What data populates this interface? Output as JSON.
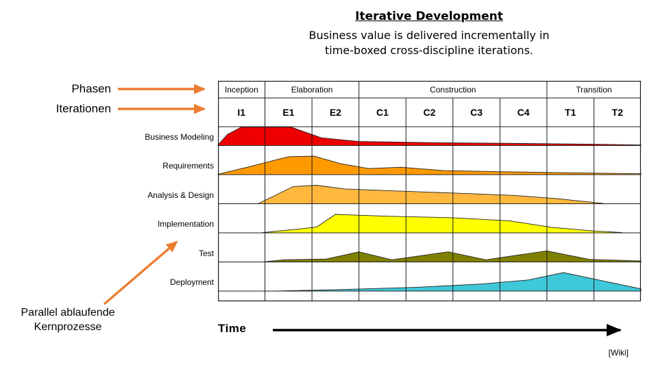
{
  "title": "Iterative Development",
  "subtitle": [
    "Business value is delivered incrementally in",
    "time-boxed cross-discipline iterations."
  ],
  "left_annotations": {
    "phasen": "Phasen",
    "iterationen": "Iterationen",
    "parallel_line1": "Parallel ablaufende",
    "parallel_line2": "Kernprozesse"
  },
  "time_label": "Time",
  "credit": "[Wiki]",
  "colors": {
    "annotation_arrow": "#ed7d31",
    "time_arrow": "#000000",
    "grid_line": "#1a1a1a",
    "hump_outline": "#222222"
  },
  "chart_data": {
    "type": "area",
    "title": "Iterative Development",
    "xlabel": "Time",
    "x_unit": "iteration columns, range 0-9",
    "y_unit": "relative effort per discipline, 0-1",
    "phases": [
      {
        "label": "Inception",
        "iterations": [
          "I1"
        ]
      },
      {
        "label": "Elaboration",
        "iterations": [
          "E1",
          "E2"
        ]
      },
      {
        "label": "Construction",
        "iterations": [
          "C1",
          "C2",
          "C3",
          "C4"
        ]
      },
      {
        "label": "Transition",
        "iterations": [
          "T1",
          "T2"
        ]
      }
    ],
    "iterations": [
      "I1",
      "E1",
      "E2",
      "C1",
      "C2",
      "C3",
      "C4",
      "T1",
      "T2"
    ],
    "disciplines": [
      {
        "label": "Business Modeling",
        "color": "#ee0000",
        "effort": [
          [
            0,
            0.03
          ],
          [
            0.2,
            0.6
          ],
          [
            0.5,
            1
          ],
          [
            1.55,
            1
          ],
          [
            2.2,
            0.42
          ],
          [
            3,
            0.22
          ],
          [
            4.5,
            0.16
          ],
          [
            6.5,
            0.11
          ],
          [
            8,
            0.07
          ],
          [
            9,
            0.03
          ]
        ]
      },
      {
        "label": "Requirements",
        "color": "#ff9900",
        "effort": [
          [
            0,
            0.02
          ],
          [
            0.7,
            0.45
          ],
          [
            1.5,
            0.97
          ],
          [
            2.05,
            1
          ],
          [
            2.6,
            0.6
          ],
          [
            3.2,
            0.33
          ],
          [
            3.9,
            0.4
          ],
          [
            4.8,
            0.22
          ],
          [
            6,
            0.16
          ],
          [
            7.5,
            0.1
          ],
          [
            9,
            0.05
          ]
        ]
      },
      {
        "label": "Analysis & Design",
        "color": "#ffb83d",
        "effort": [
          [
            0.85,
            0
          ],
          [
            1.6,
            0.93
          ],
          [
            2.1,
            1
          ],
          [
            2.7,
            0.8
          ],
          [
            3.5,
            0.72
          ],
          [
            5,
            0.58
          ],
          [
            6.3,
            0.45
          ],
          [
            7.2,
            0.28
          ],
          [
            8.2,
            0.02
          ]
        ]
      },
      {
        "label": "Implementation",
        "color": "#ffff00",
        "effort": [
          [
            0.9,
            0
          ],
          [
            1.7,
            0.2
          ],
          [
            2.1,
            0.32
          ],
          [
            2.5,
            1
          ],
          [
            3.6,
            0.9
          ],
          [
            5,
            0.82
          ],
          [
            6.2,
            0.65
          ],
          [
            7.1,
            0.3
          ],
          [
            8,
            0.1
          ],
          [
            8.6,
            0.02
          ]
        ]
      },
      {
        "label": "Test",
        "color": "#808000",
        "effort": [
          [
            0.95,
            0
          ],
          [
            1.4,
            0.12
          ],
          [
            2.3,
            0.16
          ],
          [
            3,
            0.55
          ],
          [
            3.7,
            0.12
          ],
          [
            4.9,
            0.55
          ],
          [
            5.7,
            0.12
          ],
          [
            7,
            0.6
          ],
          [
            7.9,
            0.14
          ],
          [
            9,
            0.05
          ]
        ]
      },
      {
        "label": "Deployment",
        "color": "#3fc8d8",
        "effort": [
          [
            1.2,
            0
          ],
          [
            2.6,
            0.08
          ],
          [
            4.2,
            0.2
          ],
          [
            5.6,
            0.38
          ],
          [
            6.6,
            0.6
          ],
          [
            7.35,
            1
          ],
          [
            9,
            0.12
          ]
        ]
      }
    ]
  }
}
